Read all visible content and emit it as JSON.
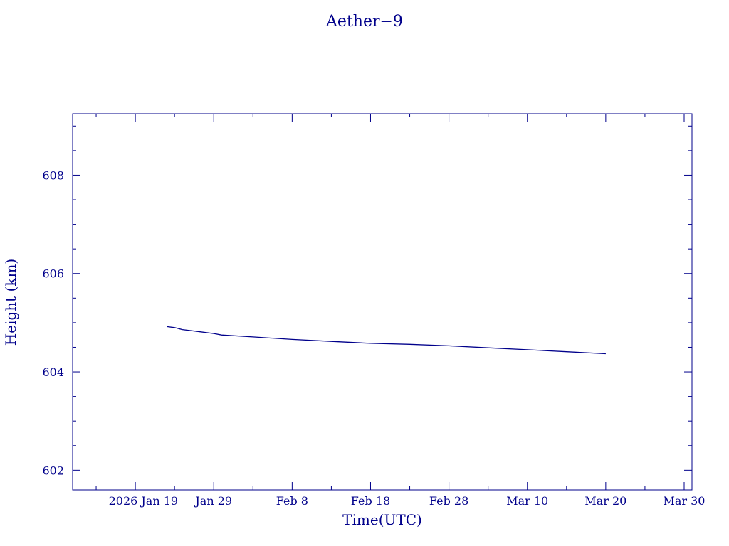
{
  "chart_data": {
    "type": "line",
    "title": "Aether−9",
    "xlabel": "Time(UTC)",
    "ylabel": "Height (km)",
    "xlim": [
      "2026-01-11",
      "2026-03-31"
    ],
    "ylim": [
      601.6,
      609.25
    ],
    "x_ticks": [
      {
        "date": "2026-01-19",
        "label": "2026 Jan 19"
      },
      {
        "date": "2026-01-29",
        "label": "Jan 29"
      },
      {
        "date": "2026-02-08",
        "label": "Feb  8"
      },
      {
        "date": "2026-02-18",
        "label": "Feb 18"
      },
      {
        "date": "2026-02-28",
        "label": "Feb 28"
      },
      {
        "date": "2026-03-10",
        "label": "Mar 10"
      },
      {
        "date": "2026-03-20",
        "label": "Mar 20"
      },
      {
        "date": "2026-03-30",
        "label": "Mar 30"
      }
    ],
    "y_ticks": [
      602,
      604,
      606,
      608
    ],
    "grid": false,
    "series": [
      {
        "color": "#00008b",
        "x": [
          "2026-01-23",
          "2026-01-24",
          "2026-01-25",
          "2026-01-27",
          "2026-01-29",
          "2026-01-30",
          "2026-02-03",
          "2026-02-08",
          "2026-02-13",
          "2026-02-18",
          "2026-02-23",
          "2026-02-28",
          "2026-03-05",
          "2026-03-10",
          "2026-03-15",
          "2026-03-20"
        ],
        "values": [
          604.92,
          604.9,
          604.86,
          604.82,
          604.78,
          604.75,
          604.71,
          604.66,
          604.62,
          604.58,
          604.56,
          604.53,
          604.49,
          604.45,
          604.41,
          604.37
        ]
      }
    ]
  }
}
